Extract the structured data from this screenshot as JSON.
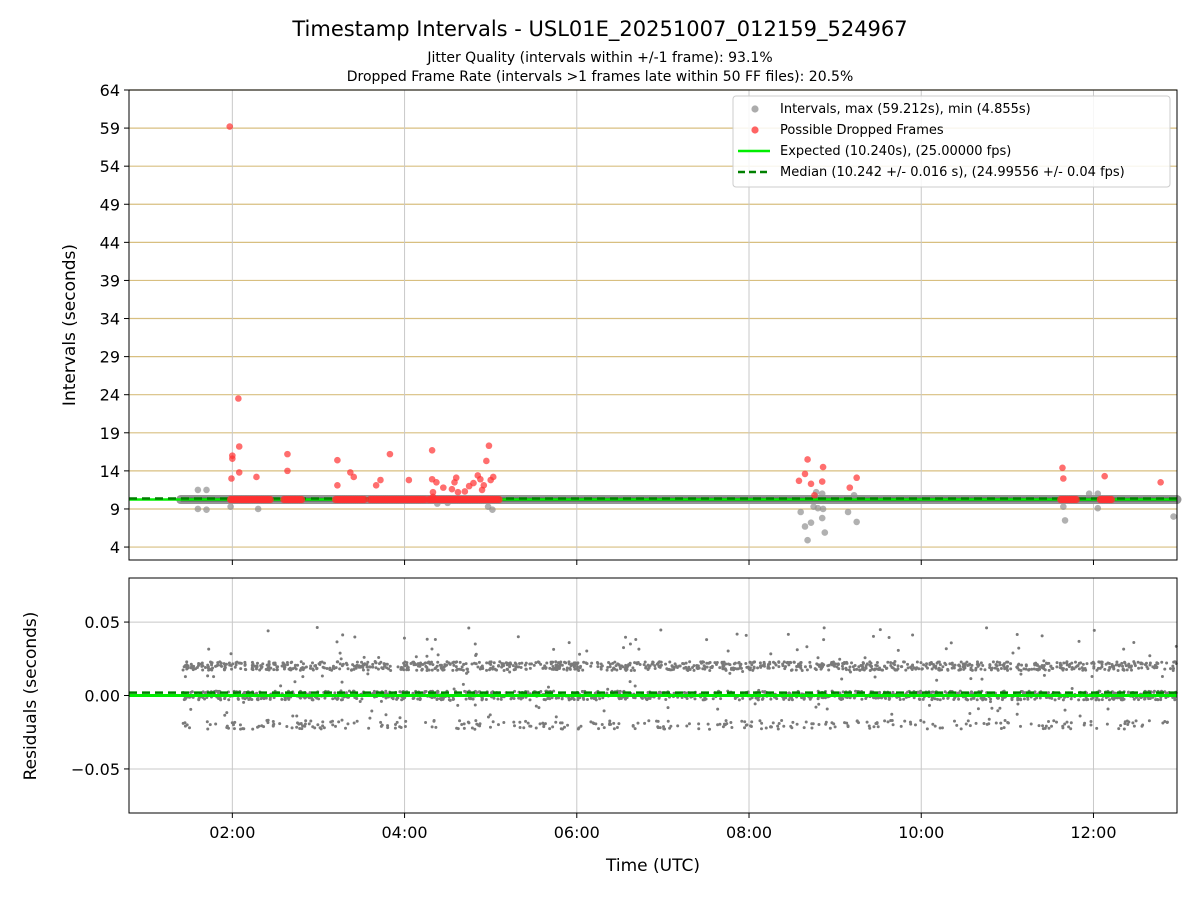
{
  "figure": {
    "title": "Timestamp Intervals - USL01E_20251007_012159_524967",
    "subtitle_line1": "Jitter Quality (intervals within +/-1 frame): 93.1%",
    "subtitle_line2": "Dropped Frame Rate (intervals >1 frames late within 50 FF files): 20.5%"
  },
  "chart_data": [
    {
      "type": "scatter",
      "name": "intervals",
      "ylabel": "Intervals (seconds)",
      "xlabel": "",
      "x_units": "hours UTC",
      "xlim": [
        0.8,
        12.97
      ],
      "ylim": [
        2.3,
        64
      ],
      "yticks": [
        4,
        9,
        14,
        19,
        24,
        29,
        34,
        39,
        44,
        49,
        54,
        59,
        64
      ],
      "ytick_labels": [
        "4",
        "9",
        "14",
        "19",
        "24",
        "29",
        "34",
        "39",
        "44",
        "49",
        "54",
        "59",
        "64"
      ],
      "xticks": [
        2,
        4,
        6,
        8,
        10,
        12
      ],
      "grid": true,
      "legend_position": "top-right",
      "legend": [
        "Intervals, max (59.212s), min (4.855s)",
        "Possible Dropped Frames",
        "Expected (10.240s), (25.00000 fps)",
        "Median (10.242 +/- 0.016 s), (24.99556 +/- 0.04 fps)"
      ],
      "expected_interval": 10.24,
      "median_interval": 10.242,
      "baseline_band": {
        "x_start": 1.4,
        "x_end": 12.97,
        "value": 10.24
      },
      "series": [
        {
          "name": "Intervals",
          "color": "#909090",
          "points": [
            [
              1.6,
              11.5
            ],
            [
              1.7,
              11.5
            ],
            [
              1.6,
              9.0
            ],
            [
              1.7,
              8.9
            ],
            [
              1.98,
              9.3
            ],
            [
              2.3,
              9.0
            ],
            [
              8.6,
              8.6
            ],
            [
              8.65,
              6.7
            ],
            [
              8.68,
              4.9
            ],
            [
              8.72,
              7.2
            ],
            [
              8.75,
              9.3
            ],
            [
              8.78,
              11.2
            ],
            [
              8.8,
              9.1
            ],
            [
              8.85,
              11.0
            ],
            [
              8.85,
              7.8
            ],
            [
              8.88,
              5.9
            ],
            [
              8.86,
              9.0
            ],
            [
              9.15,
              8.6
            ],
            [
              9.22,
              10.8
            ],
            [
              9.25,
              7.3
            ],
            [
              11.65,
              9.3
            ],
            [
              11.67,
              7.5
            ],
            [
              11.95,
              11.0
            ],
            [
              12.05,
              11.0
            ],
            [
              12.05,
              9.1
            ],
            [
              12.93,
              8.0
            ],
            [
              4.97,
              9.3
            ],
            [
              5.02,
              8.9
            ],
            [
              4.38,
              9.7
            ],
            [
              4.5,
              9.8
            ]
          ]
        },
        {
          "name": "Possible Dropped Frames",
          "color": "#ff3030",
          "points": [
            [
              1.97,
              59.2
            ],
            [
              2.07,
              23.5
            ],
            [
              2.08,
              17.2
            ],
            [
              2.0,
              16.0
            ],
            [
              2.0,
              15.6
            ],
            [
              2.08,
              13.8
            ],
            [
              1.99,
              13.0
            ],
            [
              2.28,
              13.2
            ],
            [
              2.64,
              16.2
            ],
            [
              2.64,
              14.0
            ],
            [
              3.22,
              15.4
            ],
            [
              3.22,
              12.1
            ],
            [
              3.37,
              13.8
            ],
            [
              3.41,
              13.2
            ],
            [
              3.67,
              12.1
            ],
            [
              3.72,
              12.8
            ],
            [
              3.83,
              16.2
            ],
            [
              4.05,
              12.8
            ],
            [
              4.32,
              16.7
            ],
            [
              4.32,
              12.9
            ],
            [
              4.37,
              12.5
            ],
            [
              4.33,
              11.2
            ],
            [
              4.33,
              10.6
            ],
            [
              4.6,
              13.1
            ],
            [
              4.58,
              12.5
            ],
            [
              4.55,
              11.6
            ],
            [
              4.62,
              11.2
            ],
            [
              4.45,
              11.8
            ],
            [
              4.75,
              12.0
            ],
            [
              4.8,
              12.4
            ],
            [
              4.85,
              13.4
            ],
            [
              4.88,
              12.9
            ],
            [
              4.92,
              12.1
            ],
            [
              4.95,
              15.3
            ],
            [
              4.98,
              17.3
            ],
            [
              5.0,
              12.8
            ],
            [
              5.03,
              13.2
            ],
            [
              4.9,
              11.5
            ],
            [
              4.7,
              11.3
            ],
            [
              8.58,
              12.7
            ],
            [
              8.65,
              13.6
            ],
            [
              8.68,
              15.5
            ],
            [
              8.72,
              12.3
            ],
            [
              8.76,
              10.8
            ],
            [
              8.86,
              14.5
            ],
            [
              8.85,
              12.6
            ],
            [
              9.17,
              11.8
            ],
            [
              9.25,
              13.1
            ],
            [
              11.64,
              14.4
            ],
            [
              11.65,
              13.0
            ],
            [
              12.13,
              13.3
            ],
            [
              12.78,
              12.5
            ]
          ],
          "clusters": [
            [
              1.98,
              2.45
            ],
            [
              2.6,
              2.82
            ],
            [
              3.2,
              3.55
            ],
            [
              3.6,
              4.25
            ],
            [
              4.28,
              5.12
            ],
            [
              11.62,
              11.8
            ],
            [
              12.08,
              12.22
            ]
          ],
          "cluster_value": 10.24
        }
      ]
    },
    {
      "type": "scatter",
      "name": "residuals",
      "ylabel": "Residuals (seconds)",
      "xlabel": "Time (UTC)",
      "xlim": [
        0.8,
        12.97
      ],
      "ylim": [
        -0.08,
        0.08
      ],
      "yticks": [
        -0.05,
        0.0,
        0.05
      ],
      "ytick_labels": [
        "−0.05",
        "0.00",
        "0.05"
      ],
      "xticks": [
        2,
        4,
        6,
        8,
        10,
        12
      ],
      "xtick_labels": [
        "02:00",
        "04:00",
        "06:00",
        "08:00",
        "10:00",
        "12:00"
      ],
      "grid": true,
      "levels": [
        0.02,
        0.0,
        -0.02
      ],
      "residual_range": [
        -0.025,
        0.048
      ],
      "expected_line": 0.0,
      "median_line": 0.002,
      "point_color": "#7a7a7a"
    }
  ],
  "colors": {
    "expected": "#00ee00",
    "median": "#008000",
    "band": "#555555",
    "hgrid_top": "#d8bf80",
    "grid": "#c8c8c8",
    "gray_point": "#909090",
    "red_point": "#ff3030"
  }
}
